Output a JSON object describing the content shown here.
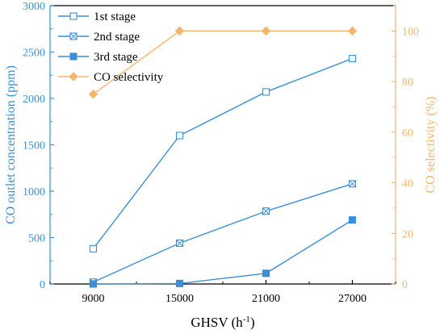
{
  "chart_data": {
    "type": "line",
    "x": [
      9000,
      15000,
      21000,
      27000
    ],
    "xlabel_base": "GHSV (h",
    "xlabel_sup": "-1",
    "xlabel_end": ")",
    "xticks": [
      "9000",
      "15000",
      "21000",
      "27000"
    ],
    "y_left": {
      "label": "CO outlet concentration (ppm)",
      "range": [
        0,
        3000
      ],
      "ticks": [
        "0",
        "500",
        "1000",
        "1500",
        "2000",
        "2500",
        "3000"
      ],
      "tick_values": [
        0,
        500,
        1000,
        1500,
        2000,
        2500,
        3000
      ],
      "color": "#3a8fd8"
    },
    "y_right": {
      "label": "CO selectivity (%)",
      "range": [
        0,
        110
      ],
      "ticks": [
        "0",
        "20",
        "40",
        "60",
        "80",
        "100"
      ],
      "tick_values": [
        0,
        20,
        40,
        60,
        80,
        100
      ],
      "color": "#f6b56b"
    },
    "series": [
      {
        "name": "1st stage",
        "axis": "left",
        "marker": "open-square",
        "color": "#3a8fd8",
        "values": [
          380,
          1600,
          2070,
          2430
        ]
      },
      {
        "name": "2nd stage",
        "axis": "left",
        "marker": "crossed-square",
        "color": "#3a8fd8",
        "values": [
          20,
          440,
          785,
          1080
        ]
      },
      {
        "name": "3rd stage",
        "axis": "left",
        "marker": "filled-square",
        "color": "#3a8fd8",
        "values": [
          0,
          5,
          115,
          690
        ]
      },
      {
        "name": "CO selectivity",
        "axis": "right",
        "marker": "filled-diamond",
        "color": "#f6b56b",
        "values": [
          75,
          100,
          100,
          100
        ]
      }
    ],
    "legend_position": "top-left",
    "grid": false
  }
}
